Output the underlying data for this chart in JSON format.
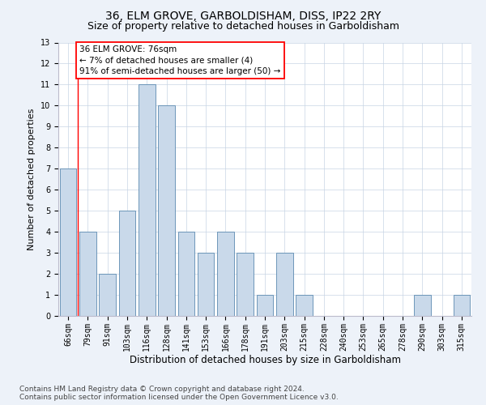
{
  "title": "36, ELM GROVE, GARBOLDISHAM, DISS, IP22 2RY",
  "subtitle": "Size of property relative to detached houses in Garboldisham",
  "xlabel": "Distribution of detached houses by size in Garboldisham",
  "ylabel": "Number of detached properties",
  "categories": [
    "66sqm",
    "79sqm",
    "91sqm",
    "103sqm",
    "116sqm",
    "128sqm",
    "141sqm",
    "153sqm",
    "166sqm",
    "178sqm",
    "191sqm",
    "203sqm",
    "215sqm",
    "228sqm",
    "240sqm",
    "253sqm",
    "265sqm",
    "278sqm",
    "290sqm",
    "303sqm",
    "315sqm"
  ],
  "values": [
    7,
    4,
    2,
    5,
    11,
    10,
    4,
    3,
    4,
    3,
    1,
    3,
    1,
    0,
    0,
    0,
    0,
    0,
    1,
    0,
    1
  ],
  "bar_color": "#c9d9ea",
  "bar_edge_color": "#5b8ab0",
  "grid_color": "#c8d4e4",
  "annotation_line1": "36 ELM GROVE: 76sqm",
  "annotation_line2": "← 7% of detached houses are smaller (4)",
  "annotation_line3": "91% of semi-detached houses are larger (50) →",
  "ylim_max": 13,
  "footer_line1": "Contains HM Land Registry data © Crown copyright and database right 2024.",
  "footer_line2": "Contains public sector information licensed under the Open Government Licence v3.0.",
  "background_color": "#edf2f9",
  "plot_bg_color": "#ffffff",
  "title_fontsize": 10,
  "subtitle_fontsize": 9,
  "tick_fontsize": 7,
  "ylabel_fontsize": 8,
  "xlabel_fontsize": 8.5,
  "footer_fontsize": 6.5,
  "annotation_fontsize": 7.5,
  "red_line_x": 0.5
}
